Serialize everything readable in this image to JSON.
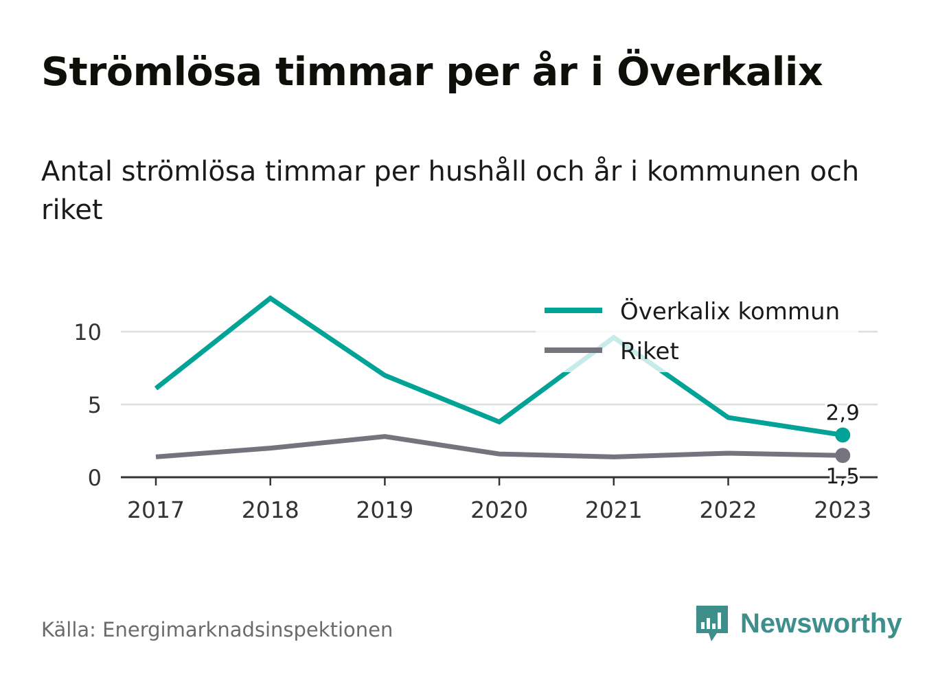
{
  "header": {
    "title": "Strömlösa timmar per år i Överkalix",
    "subtitle": "Antal strömlösa timmar per hushåll och år i kommunen och riket"
  },
  "footer": {
    "source": "Källa: Energimarknadsinspektionen",
    "brand": "Newsworthy",
    "brand_icon": "newsworthy-logo-icon",
    "brand_color": "#3e8f8c"
  },
  "chart_data": {
    "type": "line",
    "x": [
      "2017",
      "2018",
      "2019",
      "2020",
      "2021",
      "2022",
      "2023"
    ],
    "series": [
      {
        "name": "Överkalix kommun",
        "color": "#00a395",
        "values": [
          6.1,
          12.3,
          7.0,
          3.8,
          9.6,
          4.1,
          2.9
        ],
        "end_label": "2,9"
      },
      {
        "name": "Riket",
        "color": "#75737e",
        "values": [
          1.4,
          2.0,
          2.8,
          1.6,
          1.4,
          1.65,
          1.5
        ],
        "end_label": "1,5"
      }
    ],
    "y_ticks": [
      0,
      5,
      10
    ],
    "y_tick_labels": [
      "0",
      "5",
      "10"
    ],
    "ylim": [
      0,
      12.3
    ],
    "grid": true,
    "legend": "top-right"
  }
}
